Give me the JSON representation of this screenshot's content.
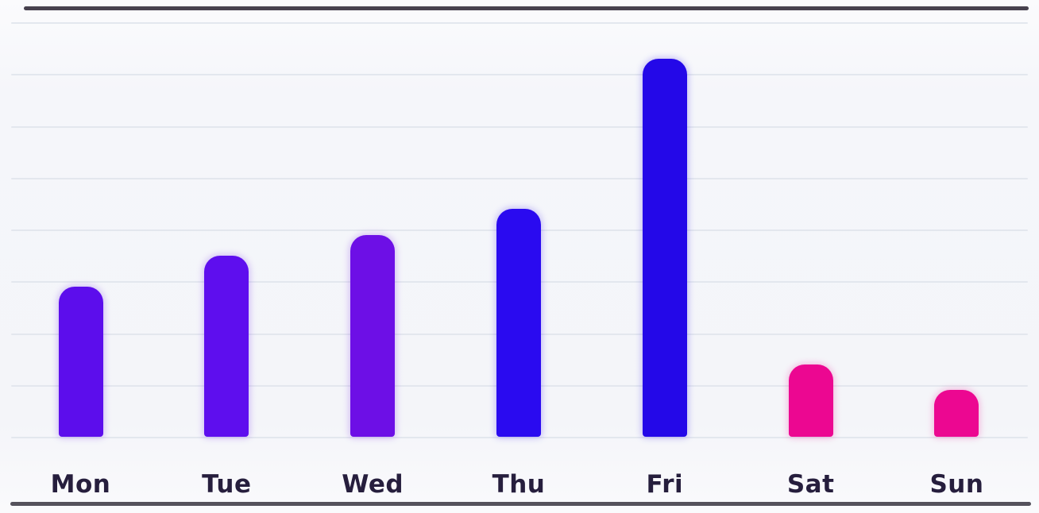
{
  "chart_data": {
    "type": "bar",
    "title": "",
    "xlabel": "",
    "ylabel": "",
    "categories": [
      "Mon",
      "Tue",
      "Wed",
      "Thu",
      "Fri",
      "Sat",
      "Sun"
    ],
    "values": [
      2.9,
      3.5,
      3.9,
      4.4,
      7.3,
      1.4,
      0.9
    ],
    "bar_colors": [
      "#5c0dec",
      "#5e0eee",
      "#6d0fe6",
      "#2a0af0",
      "#2408e8",
      "#ec0791",
      "#ec0791"
    ],
    "ylim": [
      0,
      8
    ],
    "gridlines": "horizontal",
    "gridline_units": [
      0,
      1,
      2,
      3,
      4,
      5,
      6,
      7,
      8
    ],
    "y_axis_labels_visible": false,
    "legend": "none",
    "colors": {
      "gridline": "#e3e7ee",
      "top_rule": "#47414e",
      "bottom_rule": "#55525c",
      "label_text": "#261e3d",
      "background": "#f5f6fa",
      "violet_bar": "#5e0eee",
      "blue_bar": "#2408e8",
      "magenta_bar": "#ec0791"
    }
  }
}
